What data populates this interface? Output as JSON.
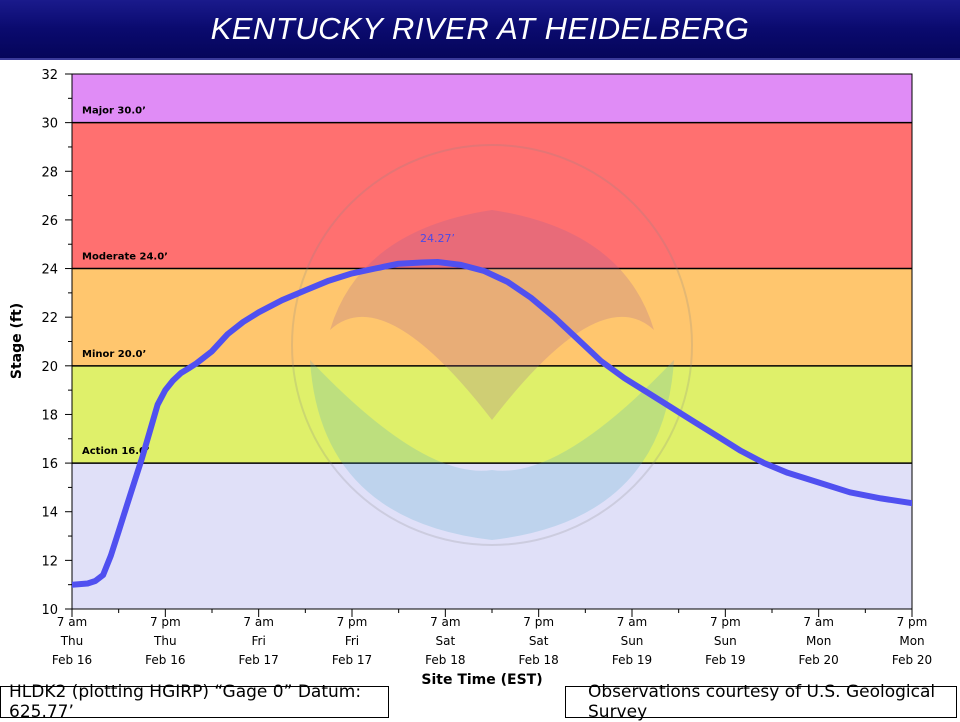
{
  "header": {
    "title": "KENTUCKY RIVER AT HEIDELBERG"
  },
  "footer": {
    "datum_text": "HLDK2 (plotting HGIRP) “Gage 0” Datum: 625.77’",
    "credit_text": "Observations courtesy of U.S. Geological Survey"
  },
  "chart_data": {
    "type": "line",
    "title": "KENTUCKY RIVER AT HEIDELBERG",
    "xlabel": "Site Time (EST)",
    "ylabel": "Stage (ft)",
    "ylim": [
      10,
      32
    ],
    "yticks": [
      10,
      12,
      14,
      16,
      18,
      20,
      22,
      24,
      26,
      28,
      30,
      32
    ],
    "xlim_hours": [
      0,
      108
    ],
    "xticks": [
      {
        "h": 0,
        "l1": "7 am",
        "l2": "Thu",
        "l3": "Feb 16"
      },
      {
        "h": 12,
        "l1": "7 pm",
        "l2": "Thu",
        "l3": "Feb 16"
      },
      {
        "h": 24,
        "l1": "7 am",
        "l2": "Fri",
        "l3": "Feb 17"
      },
      {
        "h": 36,
        "l1": "7 pm",
        "l2": "Fri",
        "l3": "Feb 17"
      },
      {
        "h": 48,
        "l1": "7 am",
        "l2": "Sat",
        "l3": "Feb 18"
      },
      {
        "h": 60,
        "l1": "7 pm",
        "l2": "Sat",
        "l3": "Feb 18"
      },
      {
        "h": 72,
        "l1": "7 am",
        "l2": "Sun",
        "l3": "Feb 19"
      },
      {
        "h": 84,
        "l1": "7 pm",
        "l2": "Sun",
        "l3": "Feb 19"
      },
      {
        "h": 96,
        "l1": "7 am",
        "l2": "Mon",
        "l3": "Feb 20"
      },
      {
        "h": 108,
        "l1": "7 pm",
        "l2": "Mon",
        "l3": "Feb 20"
      }
    ],
    "flood_categories": [
      {
        "name": "Major 30.0’",
        "from": 30,
        "to": 32,
        "color": "#e08cf6"
      },
      {
        "name": "Moderate 24.0’",
        "from": 24,
        "to": 30,
        "color": "#ff7070"
      },
      {
        "name": "Minor 20.0’",
        "from": 20,
        "to": 24,
        "color": "#ffc66e"
      },
      {
        "name": "Action 16.0’",
        "from": 16,
        "to": 20,
        "color": "#dff06a"
      },
      {
        "name": "",
        "from": 10,
        "to": 16,
        "color": "#e0e0f8"
      }
    ],
    "crest_label": "24.27’",
    "crest": {
      "h": 47,
      "y": 24.27
    },
    "series": [
      {
        "color": "#5050f0",
        "points": [
          [
            0,
            11.0
          ],
          [
            2,
            11.05
          ],
          [
            3,
            11.15
          ],
          [
            4,
            11.4
          ],
          [
            5,
            12.2
          ],
          [
            6,
            13.2
          ],
          [
            7,
            14.2
          ],
          [
            8,
            15.2
          ],
          [
            9,
            16.2
          ],
          [
            10,
            17.3
          ],
          [
            11,
            18.4
          ],
          [
            12,
            19.0
          ],
          [
            13,
            19.4
          ],
          [
            14,
            19.7
          ],
          [
            15,
            19.9
          ],
          [
            16,
            20.1
          ],
          [
            18,
            20.6
          ],
          [
            20,
            21.3
          ],
          [
            22,
            21.8
          ],
          [
            24,
            22.2
          ],
          [
            27,
            22.7
          ],
          [
            30,
            23.1
          ],
          [
            33,
            23.5
          ],
          [
            36,
            23.8
          ],
          [
            39,
            24.0
          ],
          [
            42,
            24.2
          ],
          [
            45,
            24.25
          ],
          [
            47,
            24.27
          ],
          [
            50,
            24.15
          ],
          [
            53,
            23.9
          ],
          [
            56,
            23.45
          ],
          [
            59,
            22.8
          ],
          [
            62,
            22.0
          ],
          [
            65,
            21.1
          ],
          [
            68,
            20.2
          ],
          [
            71,
            19.5
          ],
          [
            74,
            18.9
          ],
          [
            77,
            18.3
          ],
          [
            80,
            17.7
          ],
          [
            83,
            17.1
          ],
          [
            86,
            16.5
          ],
          [
            89,
            16.0
          ],
          [
            92,
            15.6
          ],
          [
            96,
            15.2
          ],
          [
            100,
            14.8
          ],
          [
            104,
            14.55
          ],
          [
            108,
            14.35
          ]
        ]
      }
    ],
    "grid": false
  }
}
